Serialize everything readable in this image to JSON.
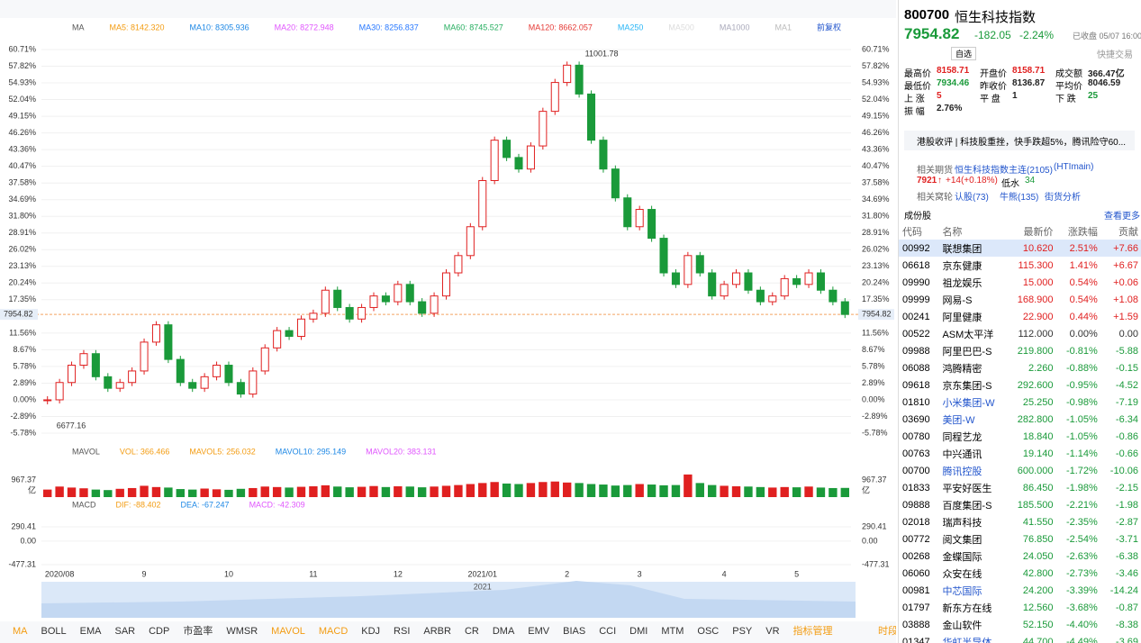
{
  "chart": {
    "ma_bar": [
      "MA",
      "MA5: 8142.320",
      "MA10: 8305.936",
      "MA20: 8272.948",
      "MA30: 8256.837",
      "MA60: 8745.527",
      "MA120: 8662.057",
      "MA250",
      "MA500",
      "MA1000",
      "MA1",
      "前复权"
    ],
    "ma_colors": [
      "#555",
      "#f39c12",
      "#1e88e5",
      "#e056fd",
      "#2979ff",
      "#27ae60",
      "#e53935",
      "#29b6f6",
      "#ddd",
      "#aab",
      "#bbb",
      "#2255cc"
    ],
    "ylim": [
      -5.78,
      60.71
    ],
    "yticks": [
      {
        "value": 60.71,
        "label": "60.71%"
      },
      {
        "value": 57.82,
        "label": "57.82%"
      },
      {
        "value": 54.93,
        "label": "54.93%"
      },
      {
        "value": 52.04,
        "label": "52.04%"
      },
      {
        "value": 49.15,
        "label": "49.15%"
      },
      {
        "value": 46.26,
        "label": "46.26%"
      },
      {
        "value": 43.36,
        "label": "43.36%"
      },
      {
        "value": 40.47,
        "label": "40.47%"
      },
      {
        "value": 37.58,
        "label": "37.58%"
      },
      {
        "value": 34.69,
        "label": "34.69%"
      },
      {
        "value": 31.8,
        "label": "31.80%"
      },
      {
        "value": 28.91,
        "label": "28.91%"
      },
      {
        "value": 26.02,
        "label": "26.02%"
      },
      {
        "value": 23.13,
        "label": "23.13%"
      },
      {
        "value": 20.24,
        "label": "20.24%"
      },
      {
        "value": 17.35,
        "label": "17.35%"
      },
      {
        "value": 11.56,
        "label": "11.56%"
      },
      {
        "value": 8.67,
        "label": "8.67%"
      },
      {
        "value": 5.78,
        "label": "5.78%"
      },
      {
        "value": 2.89,
        "label": "2.89%"
      },
      {
        "value": 0,
        "label": "0.00%"
      },
      {
        "value": -2.89,
        "label": "-2.89%"
      },
      {
        "value": -5.78,
        "label": "-5.78%"
      }
    ],
    "closes": [
      0,
      3,
      6,
      8,
      4,
      2,
      3,
      5,
      10,
      13,
      7,
      3,
      2,
      4,
      6,
      3,
      1,
      5,
      9,
      12,
      11,
      14,
      15,
      19,
      16,
      14,
      16,
      18,
      17,
      20,
      17,
      15,
      18,
      22,
      25,
      30,
      38,
      45,
      42,
      40,
      44,
      50,
      55,
      58,
      53,
      45,
      40,
      35,
      30,
      33,
      28,
      22,
      20,
      25,
      22,
      18,
      20,
      22,
      19,
      17,
      18,
      21,
      20,
      22,
      19,
      17,
      14.8
    ],
    "last_price": {
      "value": 14.8,
      "label": "7954.82"
    },
    "high_label": "11001.78",
    "low_label": "6677.16",
    "xlabels": [
      "2020/08",
      "9",
      "10",
      "11",
      "12",
      "2021/01",
      "2",
      "3",
      "4",
      "5"
    ],
    "xlabel_pos": [
      1,
      8,
      15,
      22,
      29,
      36,
      43,
      49,
      56,
      62
    ],
    "nav_label": "2021",
    "vol_bar": [
      "MAVOL",
      "VOL: 366.466",
      "MAVOL5: 256.032",
      "MAVOL10: 295.149",
      "MAVOL20: 383.131"
    ],
    "vol_colors": [
      "#555",
      "#f39c12",
      "#f39c12",
      "#1e88e5",
      "#e056fd"
    ],
    "vol_lim": [
      0,
      967.37
    ],
    "vol_tick": {
      "value": 967.37,
      "label": "967.37"
    },
    "vol_unit": "亿",
    "volumes": [
      300,
      420,
      380,
      350,
      300,
      280,
      330,
      360,
      450,
      400,
      380,
      320,
      300,
      340,
      310,
      290,
      330,
      360,
      420,
      400,
      380,
      410,
      430,
      470,
      420,
      390,
      410,
      440,
      400,
      430,
      420,
      390,
      420,
      450,
      480,
      520,
      560,
      600,
      540,
      520,
      560,
      600,
      620,
      580,
      560,
      520,
      500,
      460,
      480,
      520,
      500,
      470,
      480,
      900,
      560,
      480,
      450,
      430,
      420,
      400,
      380,
      400,
      390,
      420,
      380,
      360,
      366
    ],
    "macd_bar": [
      "MACD",
      "DIF: -88.402",
      "DEA: -67.247",
      "MACD: -42.309"
    ],
    "macd_colors": [
      "#555",
      "#f39c12",
      "#1e88e5",
      "#e056fd"
    ],
    "macd_lim": [
      -477.31,
      290.41
    ],
    "macd_ticks": [
      {
        "value": 290.41,
        "label": "290.41"
      },
      {
        "value": 0,
        "label": "0.00"
      },
      {
        "value": -477.31,
        "label": "-477.31"
      }
    ],
    "indicators": [
      "MA",
      "BOLL",
      "EMA",
      "SAR",
      "CDP",
      "市盈率",
      "WMSR",
      "MAVOL",
      "MACD",
      "KDJ",
      "RSI",
      "ARBR",
      "CR",
      "DMA",
      "EMV",
      "BIAS",
      "CCI",
      "DMI",
      "MTM",
      "OSC",
      "PSY",
      "VR",
      "指标管理"
    ],
    "period": "时段"
  },
  "quote": {
    "code": "800700",
    "name": "恒生科技指数",
    "price": "7954.82",
    "change": "-182.05",
    "pct": "-2.24%",
    "status": "已收盘 05/07 16:00",
    "watch": "自选",
    "trade": "快捷交易",
    "stats": [
      {
        "label": "最高价",
        "value": "8158.71"
      },
      {
        "label": "开盘价",
        "value": "8158.71"
      },
      {
        "label": "成交额",
        "value": "366.47亿"
      },
      {
        "label": "最低价",
        "value": "7934.46"
      },
      {
        "label": "昨收价",
        "value": "8136.87"
      },
      {
        "label": "平均价",
        "value": "8046.59"
      },
      {
        "label": "上 涨",
        "value": "5"
      },
      {
        "label": "平 盘",
        "value": "1"
      },
      {
        "label": "下 跌",
        "value": "25"
      },
      {
        "label": "振 幅",
        "value": "2.76%"
      }
    ],
    "news": "港股收评 | 科技股重挫，快手跌超5%，腾讯险守60...",
    "futures": {
      "label": "相关期货",
      "name": "恒生科技指数主连(2105)",
      "code": "(HTImain)",
      "price": "7921",
      "arrow": "↑",
      "change": "+14(+0.18%)",
      "basis_label": "低水",
      "basis": "34"
    },
    "warrants": {
      "label": "相关窝轮",
      "items": [
        "认股(73)",
        "牛熊(135)",
        "街货分析"
      ]
    }
  },
  "constituents": {
    "title": "成份股",
    "more": "查看更多",
    "columns": [
      "代码",
      "名称",
      "最新价",
      "涨跌幅",
      "贡献"
    ],
    "rows": [
      [
        "00992",
        "联想集团",
        "10.620",
        "2.51%",
        "+7.66"
      ],
      [
        "06618",
        "京东健康",
        "115.300",
        "1.41%",
        "+6.67"
      ],
      [
        "09990",
        "祖龙娱乐",
        "15.000",
        "0.54%",
        "+0.06"
      ],
      [
        "09999",
        "网易-S",
        "168.900",
        "0.54%",
        "+1.08"
      ],
      [
        "00241",
        "阿里健康",
        "22.900",
        "0.44%",
        "+1.59"
      ],
      [
        "00522",
        "ASM太平洋",
        "112.000",
        "0.00%",
        "0.00"
      ],
      [
        "09988",
        "阿里巴巴-S",
        "219.800",
        "-0.81%",
        "-5.88"
      ],
      [
        "06088",
        "鸿腾精密",
        "2.260",
        "-0.88%",
        "-0.15"
      ],
      [
        "09618",
        "京东集团-S",
        "292.600",
        "-0.95%",
        "-4.52"
      ],
      [
        "01810",
        "小米集团-W",
        "25.250",
        "-0.98%",
        "-7.19"
      ],
      [
        "03690",
        "美团-W",
        "282.800",
        "-1.05%",
        "-6.34"
      ],
      [
        "00780",
        "同程艺龙",
        "18.840",
        "-1.05%",
        "-0.86"
      ],
      [
        "00763",
        "中兴通讯",
        "19.140",
        "-1.14%",
        "-0.66"
      ],
      [
        "00700",
        "腾讯控股",
        "600.000",
        "-1.72%",
        "-10.06"
      ],
      [
        "01833",
        "平安好医生",
        "86.450",
        "-1.98%",
        "-2.15"
      ],
      [
        "09888",
        "百度集团-S",
        "185.500",
        "-2.21%",
        "-1.98"
      ],
      [
        "02018",
        "瑞声科技",
        "41.550",
        "-2.35%",
        "-2.87"
      ],
      [
        "00772",
        "阅文集团",
        "76.850",
        "-2.54%",
        "-3.71"
      ],
      [
        "00268",
        "金蝶国际",
        "24.050",
        "-2.63%",
        "-6.38"
      ],
      [
        "06060",
        "众安在线",
        "42.800",
        "-2.73%",
        "-3.46"
      ],
      [
        "00981",
        "中芯国际",
        "24.200",
        "-3.39%",
        "-14.24"
      ],
      [
        "01797",
        "新东方在线",
        "12.560",
        "-3.68%",
        "-0.87"
      ],
      [
        "03888",
        "金山软件",
        "52.150",
        "-4.40%",
        "-8.38"
      ],
      [
        "01347",
        "华虹半导体",
        "44.700",
        "-4.49%",
        "-3.69"
      ]
    ],
    "links": [
      "01810",
      "03690",
      "00700",
      "00981",
      "01347"
    ]
  }
}
